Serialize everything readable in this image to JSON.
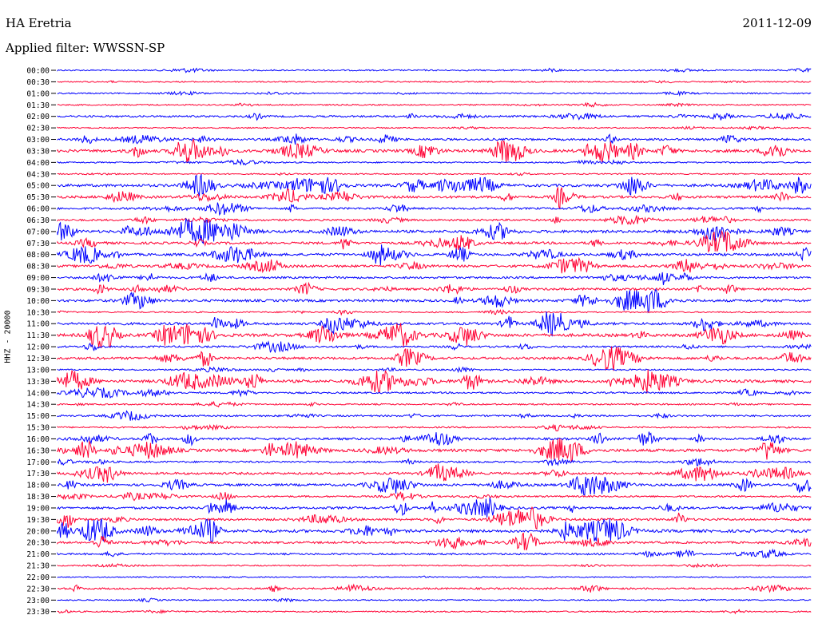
{
  "header": {
    "station": "HA Eretria",
    "date": "2011-12-09",
    "filter": "Applied filter: WWSSN-SP"
  },
  "chart_data": {
    "type": "line",
    "title": "HA Eretria",
    "subtitle": "Applied filter: WWSSN-SP",
    "ylabel": "HHZ - 20000",
    "colors": [
      "#0000ff",
      "#ff0033"
    ],
    "traces": [
      {
        "label": "00:00",
        "activity": 0.15,
        "color": "#0000ff"
      },
      {
        "label": "00:30",
        "activity": 0.1,
        "color": "#ff0033"
      },
      {
        "label": "01:00",
        "activity": 0.12,
        "color": "#0000ff"
      },
      {
        "label": "01:30",
        "activity": 0.12,
        "color": "#ff0033"
      },
      {
        "label": "02:00",
        "activity": 0.35,
        "color": "#0000ff"
      },
      {
        "label": "02:30",
        "activity": 0.1,
        "color": "#ff0033"
      },
      {
        "label": "03:00",
        "activity": 0.45,
        "color": "#0000ff"
      },
      {
        "label": "03:30",
        "activity": 0.75,
        "color": "#ff0033"
      },
      {
        "label": "04:00",
        "activity": 0.15,
        "color": "#0000ff"
      },
      {
        "label": "04:30",
        "activity": 0.1,
        "color": "#ff0033"
      },
      {
        "label": "05:00",
        "activity": 0.7,
        "color": "#0000ff"
      },
      {
        "label": "05:30",
        "activity": 0.6,
        "color": "#ff0033"
      },
      {
        "label": "06:00",
        "activity": 0.4,
        "color": "#0000ff"
      },
      {
        "label": "06:30",
        "activity": 0.35,
        "color": "#ff0033"
      },
      {
        "label": "07:00",
        "activity": 0.7,
        "color": "#0000ff"
      },
      {
        "label": "07:30",
        "activity": 0.55,
        "color": "#ff0033"
      },
      {
        "label": "08:00",
        "activity": 0.6,
        "color": "#0000ff"
      },
      {
        "label": "08:30",
        "activity": 0.55,
        "color": "#ff0033"
      },
      {
        "label": "09:00",
        "activity": 0.45,
        "color": "#0000ff"
      },
      {
        "label": "09:30",
        "activity": 0.5,
        "color": "#ff0033"
      },
      {
        "label": "10:00",
        "activity": 0.6,
        "color": "#0000ff"
      },
      {
        "label": "10:30",
        "activity": 0.15,
        "color": "#ff0033"
      },
      {
        "label": "11:00",
        "activity": 0.6,
        "color": "#0000ff"
      },
      {
        "label": "11:30",
        "activity": 0.8,
        "color": "#ff0033"
      },
      {
        "label": "12:00",
        "activity": 0.35,
        "color": "#0000ff"
      },
      {
        "label": "12:30",
        "activity": 0.55,
        "color": "#ff0033"
      },
      {
        "label": "13:00",
        "activity": 0.2,
        "color": "#0000ff"
      },
      {
        "label": "13:30",
        "activity": 0.7,
        "color": "#ff0033"
      },
      {
        "label": "14:00",
        "activity": 0.3,
        "color": "#0000ff"
      },
      {
        "label": "14:30",
        "activity": 0.2,
        "color": "#ff0033"
      },
      {
        "label": "15:00",
        "activity": 0.3,
        "color": "#0000ff"
      },
      {
        "label": "15:30",
        "activity": 0.2,
        "color": "#ff0033"
      },
      {
        "label": "16:00",
        "activity": 0.5,
        "color": "#0000ff"
      },
      {
        "label": "16:30",
        "activity": 0.75,
        "color": "#ff0033"
      },
      {
        "label": "17:00",
        "activity": 0.3,
        "color": "#0000ff"
      },
      {
        "label": "17:30",
        "activity": 0.5,
        "color": "#ff0033"
      },
      {
        "label": "18:00",
        "activity": 0.55,
        "color": "#0000ff"
      },
      {
        "label": "18:30",
        "activity": 0.3,
        "color": "#ff0033"
      },
      {
        "label": "19:00",
        "activity": 0.55,
        "color": "#0000ff"
      },
      {
        "label": "19:30",
        "activity": 0.5,
        "color": "#ff0033"
      },
      {
        "label": "20:00",
        "activity": 0.75,
        "color": "#0000ff"
      },
      {
        "label": "20:30",
        "activity": 0.45,
        "color": "#ff0033"
      },
      {
        "label": "21:00",
        "activity": 0.3,
        "color": "#0000ff"
      },
      {
        "label": "21:30",
        "activity": 0.1,
        "color": "#ff0033"
      },
      {
        "label": "22:00",
        "activity": 0.05,
        "color": "#0000ff"
      },
      {
        "label": "22:30",
        "activity": 0.3,
        "color": "#ff0033"
      },
      {
        "label": "23:00",
        "activity": 0.1,
        "color": "#0000ff"
      },
      {
        "label": "23:30",
        "activity": 0.15,
        "color": "#ff0033"
      }
    ]
  }
}
